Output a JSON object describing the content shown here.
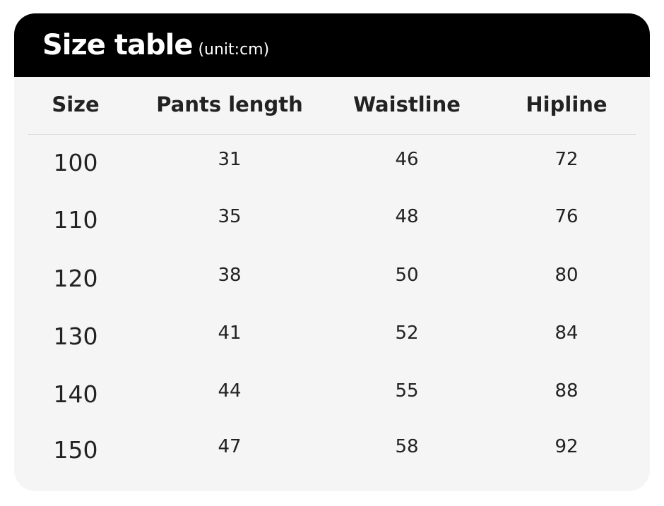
{
  "title": "Size table",
  "unit": "(unit:cm)",
  "headers": [
    "Size",
    "Pants length",
    "Waistline",
    "Hipline"
  ],
  "rows": [
    [
      "100",
      "31",
      "46",
      "72"
    ],
    [
      "110",
      "35",
      "48",
      "76"
    ],
    [
      "120",
      "38",
      "50",
      "80"
    ],
    [
      "130",
      "41",
      "52",
      "84"
    ],
    [
      "140",
      "44",
      "55",
      "88"
    ],
    [
      "150",
      "47",
      "58",
      "92"
    ]
  ]
}
